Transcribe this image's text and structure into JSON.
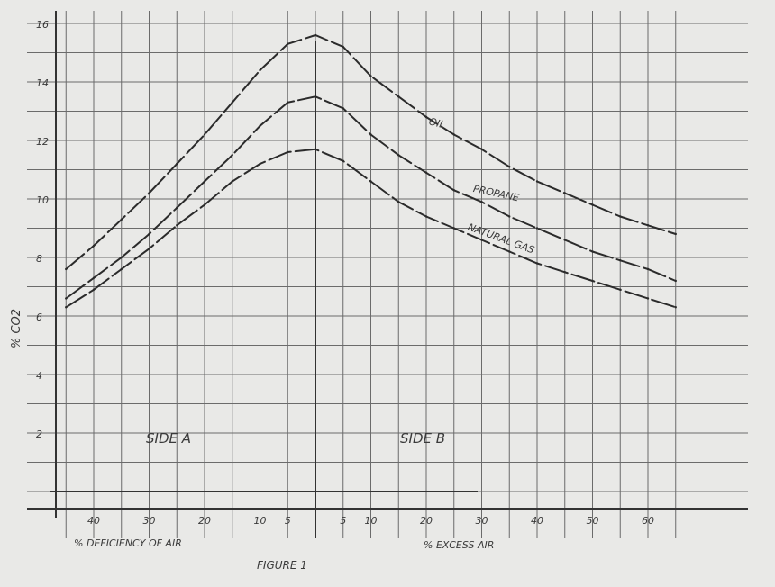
{
  "chart_data": {
    "type": "line",
    "ylabel": "% CO2",
    "ylim": [
      0,
      16.5
    ],
    "yticks": [
      2,
      4,
      6,
      8,
      10,
      12,
      14,
      16
    ],
    "x": [
      -45,
      -40,
      -35,
      -30,
      -25,
      -20,
      -15,
      -10,
      -5,
      0,
      5,
      10,
      15,
      20,
      25,
      30,
      35,
      40,
      45,
      50,
      55,
      60,
      65
    ],
    "xlim": [
      -45,
      65
    ],
    "x_tick_labels": [
      {
        "value": -40,
        "label": "40"
      },
      {
        "value": -30,
        "label": "30"
      },
      {
        "value": -20,
        "label": "20"
      },
      {
        "value": -10,
        "label": "10"
      },
      {
        "value": -5,
        "label": "5"
      },
      {
        "value": 5,
        "label": "5"
      },
      {
        "value": 10,
        "label": "10"
      },
      {
        "value": 20,
        "label": "20"
      },
      {
        "value": 30,
        "label": "30"
      },
      {
        "value": 40,
        "label": "40"
      },
      {
        "value": 50,
        "label": "50"
      },
      {
        "value": 60,
        "label": "60"
      }
    ],
    "series": [
      {
        "name": "OIL",
        "values": [
          7.6,
          8.4,
          9.3,
          10.2,
          11.2,
          12.2,
          13.3,
          14.4,
          15.3,
          15.6,
          15.2,
          14.2,
          13.5,
          12.8,
          12.2,
          11.7,
          11.1,
          10.6,
          10.2,
          9.8,
          9.4,
          9.1,
          8.8
        ]
      },
      {
        "name": "PROPANE",
        "values": [
          6.6,
          7.3,
          8.0,
          8.8,
          9.7,
          10.6,
          11.5,
          12.5,
          13.3,
          13.5,
          13.1,
          12.2,
          11.5,
          10.9,
          10.3,
          9.9,
          9.4,
          9.0,
          8.6,
          8.2,
          7.9,
          7.6,
          7.2
        ]
      },
      {
        "name": "NATURAL GAS",
        "values": [
          6.3,
          6.9,
          7.6,
          8.3,
          9.1,
          9.8,
          10.6,
          11.2,
          11.6,
          11.7,
          11.3,
          10.6,
          9.9,
          9.4,
          9.0,
          8.6,
          8.2,
          7.8,
          7.5,
          7.2,
          6.9,
          6.6,
          6.3
        ]
      }
    ],
    "annotations": {
      "side_a": "SIDE A",
      "side_b": "SIDE B",
      "deficiency": "% DEFICIENCY OF AIR",
      "excess": "% EXCESS AIR",
      "caption": "FIGURE 1"
    },
    "grid": true
  }
}
